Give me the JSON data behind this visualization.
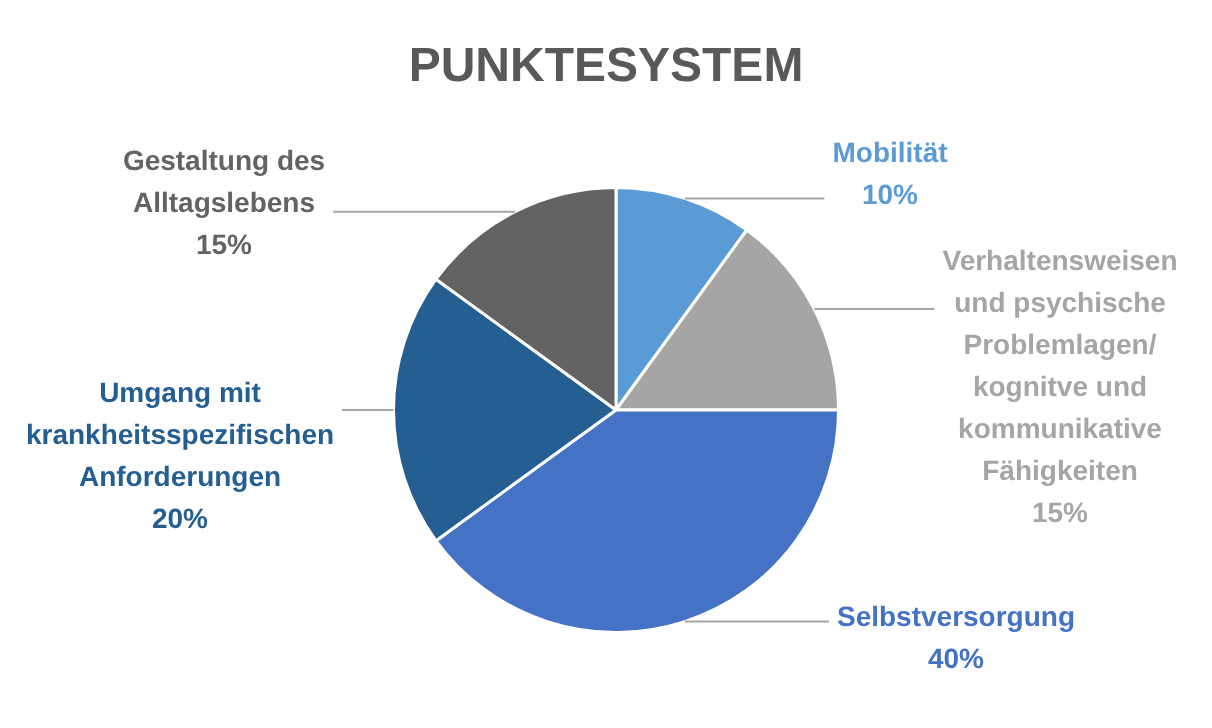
{
  "chart_data": {
    "type": "pie",
    "title": "PUNKTESYSTEM",
    "categories": [
      "Mobilität",
      "Verhaltensweisen und psychische Problemlagen/ kognitve und kommunikative Fähigkeiten",
      "Selbstversorgung",
      "Umgang mit krankheitsspezifischen Anforderungen",
      "Gestaltung des Alltagslebens"
    ],
    "values": [
      10,
      15,
      40,
      20,
      15
    ],
    "value_labels": [
      "10%",
      "15%",
      "40%",
      "20%",
      "15%"
    ],
    "colors": [
      "#5b9bd5",
      "#a5a5a5",
      "#4472c4",
      "#255e91",
      "#636363"
    ],
    "legend": false
  }
}
